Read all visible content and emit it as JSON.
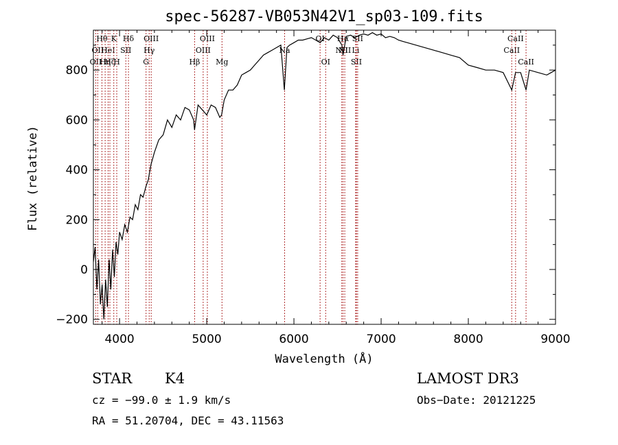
{
  "chart_data": {
    "type": "line",
    "title": "spec-56287-VB053N42V1_sp03-109.fits",
    "xlabel": "Wavelength (Å)",
    "ylabel": "Flux (relative)",
    "xlim": [
      3700,
      9000
    ],
    "ylim": [
      -220,
      960
    ],
    "xticks": [
      4000,
      5000,
      6000,
      7000,
      8000,
      9000
    ],
    "yticks": [
      -200,
      0,
      200,
      400,
      600,
      800
    ],
    "series": [
      {
        "name": "flux",
        "x": [
          3700,
          3720,
          3740,
          3760,
          3780,
          3800,
          3820,
          3840,
          3860,
          3880,
          3900,
          3920,
          3940,
          3960,
          3980,
          4000,
          4030,
          4060,
          4090,
          4120,
          4150,
          4180,
          4210,
          4240,
          4270,
          4300,
          4330,
          4360,
          4400,
          4450,
          4500,
          4550,
          4600,
          4650,
          4700,
          4750,
          4800,
          4850,
          4860,
          4900,
          4950,
          5000,
          5050,
          5100,
          5150,
          5170,
          5200,
          5250,
          5300,
          5350,
          5400,
          5450,
          5500,
          5550,
          5600,
          5650,
          5700,
          5750,
          5800,
          5850,
          5890,
          5920,
          5950,
          6000,
          6050,
          6100,
          6150,
          6200,
          6250,
          6300,
          6350,
          6400,
          6450,
          6500,
          6550,
          6563,
          6600,
          6650,
          6700,
          6750,
          6800,
          6850,
          6900,
          6950,
          7000,
          7050,
          7100,
          7150,
          7200,
          7250,
          7300,
          7400,
          7500,
          7600,
          7700,
          7800,
          7900,
          8000,
          8100,
          8200,
          8300,
          8400,
          8498,
          8542,
          8600,
          8662,
          8700,
          8800,
          8900,
          8950,
          9000
        ],
        "y": [
          30,
          90,
          -80,
          40,
          -140,
          -60,
          -200,
          -40,
          -150,
          40,
          -80,
          80,
          -30,
          110,
          60,
          150,
          120,
          180,
          150,
          210,
          200,
          260,
          240,
          300,
          290,
          330,
          360,
          420,
          470,
          520,
          540,
          600,
          570,
          620,
          600,
          650,
          640,
          600,
          560,
          660,
          640,
          620,
          660,
          650,
          610,
          620,
          680,
          720,
          720,
          740,
          780,
          790,
          800,
          820,
          840,
          860,
          870,
          880,
          890,
          900,
          720,
          890,
          900,
          910,
          920,
          920,
          925,
          930,
          920,
          910,
          930,
          920,
          940,
          930,
          900,
          860,
          935,
          940,
          930,
          940,
          945,
          940,
          950,
          940,
          945,
          930,
          935,
          930,
          920,
          915,
          910,
          900,
          890,
          880,
          870,
          860,
          850,
          820,
          810,
          800,
          800,
          790,
          720,
          790,
          790,
          720,
          800,
          790,
          780,
          790,
          800
        ]
      }
    ],
    "lines": [
      {
        "wave": 3727,
        "label": "OII",
        "row": 2
      },
      {
        "wave": 3750,
        "label": "OII",
        "row": 1
      },
      {
        "wave": 3798,
        "label": "Hθ",
        "row": 0
      },
      {
        "wave": 3835,
        "label": "Hη",
        "row": 2
      },
      {
        "wave": 3869,
        "label": "HeI",
        "row": 1
      },
      {
        "wave": 3889,
        "label": "Hζ",
        "row": 2
      },
      {
        "wave": 3934,
        "label": "K",
        "row": 0
      },
      {
        "wave": 3968,
        "label": "H",
        "row": 2
      },
      {
        "wave": 4072,
        "label": "SII",
        "row": 1
      },
      {
        "wave": 4102,
        "label": "Hδ",
        "row": 0
      },
      {
        "wave": 4304,
        "label": "G",
        "row": 2
      },
      {
        "wave": 4340,
        "label": "Hγ",
        "row": 1
      },
      {
        "wave": 4363,
        "label": "OIII",
        "row": 0
      },
      {
        "wave": 4861,
        "label": "Hβ",
        "row": 2
      },
      {
        "wave": 4959,
        "label": "OIII",
        "row": 1
      },
      {
        "wave": 5007,
        "label": "OIII",
        "row": 0
      },
      {
        "wave": 5175,
        "label": "Mg",
        "row": 2
      },
      {
        "wave": 5893,
        "label": "Na",
        "row": 1
      },
      {
        "wave": 6300,
        "label": "OI",
        "row": 0
      },
      {
        "wave": 6364,
        "label": "OI",
        "row": 2
      },
      {
        "wave": 6548,
        "label": "NII",
        "row": 1
      },
      {
        "wave": 6563,
        "label": "Hα",
        "row": 0
      },
      {
        "wave": 6583,
        "label": "NII",
        "row": 1
      },
      {
        "wave": 6708,
        "label": "Li",
        "row": 1
      },
      {
        "wave": 6716,
        "label": "SII",
        "row": 2
      },
      {
        "wave": 6731,
        "label": "SII",
        "row": 0
      },
      {
        "wave": 8498,
        "label": "CaII",
        "row": 1
      },
      {
        "wave": 8542,
        "label": "CaII",
        "row": 0
      },
      {
        "wave": 8662,
        "label": "CaII",
        "row": 2
      }
    ]
  },
  "info": {
    "object_class": "STAR",
    "subclass": "K4",
    "survey": "LAMOST DR3",
    "cz": "cz = −99.0 ± 1.9 km/s",
    "obs_date": "Obs−Date: 20121225",
    "coords": "RA =  51.20704, DEC =  43.11563"
  }
}
